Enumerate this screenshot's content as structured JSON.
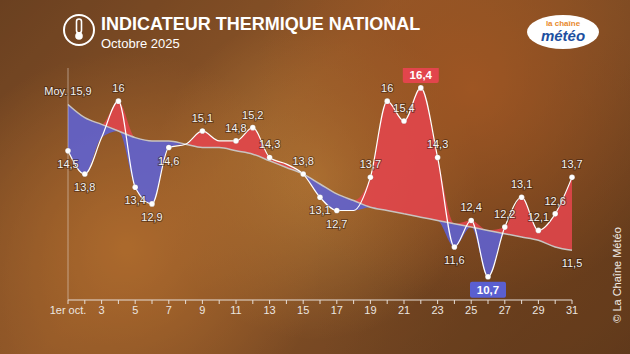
{
  "chart_data": {
    "type": "line",
    "title": "INDICATEUR THERMIQUE NATIONAL",
    "subtitle": "Octobre 2025",
    "logo": [
      "la chaîne",
      "météo"
    ],
    "credit": "© La Chaîne Météo",
    "categories": [
      "1er oct.",
      null,
      "3",
      null,
      "5",
      null,
      "7",
      null,
      "9",
      null,
      "11",
      null,
      "13",
      null,
      "15",
      null,
      "17",
      null,
      "19",
      null,
      "21",
      null,
      "23",
      null,
      "25",
      null,
      "27",
      null,
      "29",
      null,
      "31"
    ],
    "series": [
      {
        "values": [
          14.5,
          13.8,
          14.9,
          16,
          13.4,
          12.9,
          14.6,
          14.7,
          15.1,
          14.8,
          14.8,
          15.2,
          14.3,
          14.1,
          13.8,
          13.1,
          12.7,
          12.7,
          13.7,
          16,
          15.4,
          16.4,
          14.3,
          11.6,
          12.4,
          10.7,
          12.2,
          13.1,
          12.1,
          12.6,
          13.7
        ],
        "value_labels": [
          "14,5",
          "13,8",
          null,
          "16",
          "13,4",
          "12,9",
          "14,6",
          null,
          "15,1",
          null,
          "14,8",
          "15,2",
          "14,3",
          null,
          "13,8",
          "13,1",
          "12,7",
          null,
          "13,7",
          "16",
          "15,4",
          "16,4",
          "14,3",
          "11,6",
          "12,4",
          "10,7",
          "12,2",
          "13,1",
          "12,1",
          "12,6",
          "13,7"
        ],
        "color": "#ffffff",
        "marker": "circle"
      },
      {
        "values": [
          15.9,
          15.5,
          15.3,
          15.1,
          14.9,
          14.8,
          14.8,
          14.7,
          14.6,
          14.6,
          14.5,
          14.4,
          14.2,
          14.0,
          13.8,
          13.5,
          13.2,
          13.0,
          12.8,
          12.7,
          12.6,
          12.5,
          12.4,
          12.3,
          12.2,
          12.1,
          12.0,
          11.9,
          11.8,
          11.6,
          11.5
        ],
        "value_labels": [
          "Moy. 15,9",
          null,
          null,
          null,
          null,
          null,
          null,
          null,
          null,
          null,
          null,
          null,
          null,
          null,
          null,
          null,
          null,
          null,
          null,
          null,
          null,
          null,
          null,
          null,
          null,
          null,
          null,
          null,
          null,
          null,
          "11,5"
        ],
        "color": "#c9c4c0",
        "marker": "none"
      }
    ],
    "ylim": [
      10,
      17
    ],
    "tick_labels": "x",
    "data_labels": true
  }
}
